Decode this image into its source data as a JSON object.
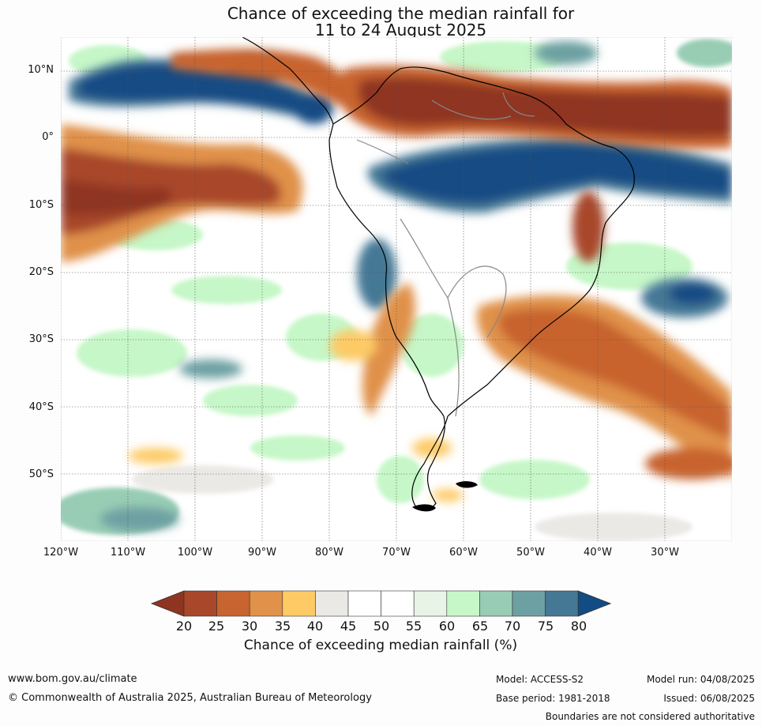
{
  "title": {
    "line1": "Chance of exceeding the median rainfall for",
    "line2": "11 to 24 August 2025"
  },
  "map": {
    "lat_labels": [
      "10°N",
      "0°",
      "10°S",
      "20°S",
      "30°S",
      "40°S",
      "50°S"
    ],
    "lon_labels": [
      "120°W",
      "110°W",
      "100°W",
      "90°W",
      "80°W",
      "70°W",
      "60°W",
      "50°W",
      "40°W",
      "30°W"
    ],
    "lat_range": [
      -60,
      15
    ],
    "lon_range": [
      -120,
      -20
    ]
  },
  "colorbar": {
    "ticks": [
      "20",
      "25",
      "30",
      "35",
      "40",
      "45",
      "50",
      "55",
      "60",
      "65",
      "70",
      "75",
      "80"
    ],
    "colors": [
      "#8f3420",
      "#a8472a",
      "#c8642f",
      "#e0914a",
      "#fdca66",
      "#ebe9e6",
      "#ffffff",
      "#ffffff",
      "#e8f4e6",
      "#c6f7c8",
      "#98cdb4",
      "#6da0a2",
      "#457895",
      "#124c84"
    ],
    "label": "Chance of exceeding median rainfall (%)"
  },
  "footer": {
    "url": "www.bom.gov.au/climate",
    "copyright": "© Commonwealth of Australia 2025, Australian Bureau of Meteorology",
    "model": "Model: ACCESS-S2",
    "base_period": "Base period: 1981-2018",
    "model_run": "Model run: 04/08/2025",
    "issued": "Issued: 06/08/2025",
    "disclaimer": "Boundaries are not considered authoritative"
  }
}
